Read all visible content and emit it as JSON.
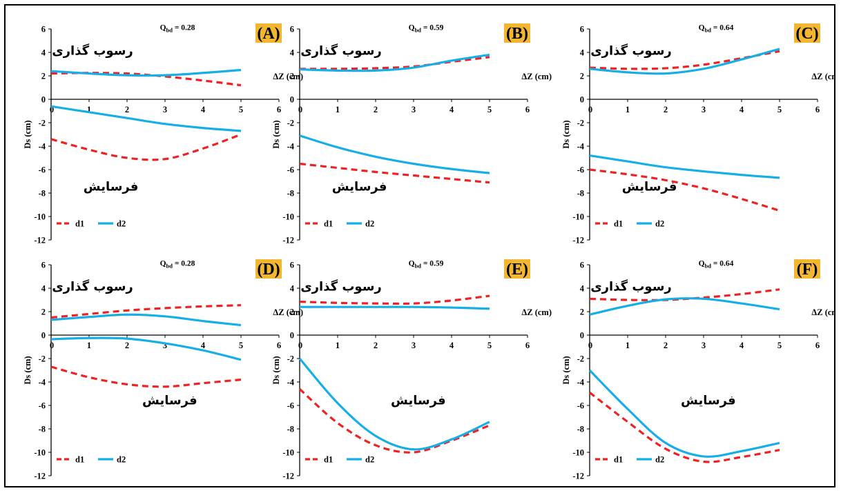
{
  "figure": {
    "x_axis_title": "ΔZ (cm)",
    "y_axis_title": "Ds (cm)",
    "deposition_label": "رسوب گذاری",
    "scour_label": "فرسایش",
    "legend": [
      "d1",
      "d2"
    ]
  },
  "colors": {
    "d1": "#ee2222",
    "d2": "#16aee6",
    "label_bg": "#f2b630"
  },
  "chart_data": [
    {
      "type": "line",
      "panel_label": "(A)",
      "q_text": "Qbd = 0.28",
      "xlim": [
        0,
        6
      ],
      "ylim": [
        -12,
        6
      ],
      "x_ticks": [
        0,
        1,
        2,
        3,
        4,
        5,
        6
      ],
      "y_ticks": [
        6,
        4,
        2,
        0,
        -2,
        -4,
        -6,
        -8,
        -10,
        -12
      ],
      "series": [
        {
          "name": "d1",
          "style": "dashed",
          "x": [
            0,
            1,
            2,
            3,
            4,
            5
          ],
          "deposition": [
            2.2,
            2.25,
            2.2,
            1.95,
            1.6,
            1.2
          ],
          "scour": [
            -3.4,
            -4.3,
            -5.0,
            -5.1,
            -4.2,
            -3.0
          ]
        },
        {
          "name": "d2",
          "style": "solid",
          "x": [
            0,
            1,
            2,
            3,
            4,
            5
          ],
          "deposition": [
            2.4,
            2.2,
            2.05,
            2.05,
            2.25,
            2.5
          ],
          "scour": [
            -0.6,
            -1.1,
            -1.6,
            -2.1,
            -2.45,
            -2.7
          ]
        }
      ]
    },
    {
      "type": "line",
      "panel_label": "(B)",
      "q_text": "Qbd = 0.59",
      "xlim": [
        0,
        6
      ],
      "ylim": [
        -12,
        6
      ],
      "x_ticks": [
        0,
        1,
        2,
        3,
        4,
        5,
        6
      ],
      "y_ticks": [
        6,
        4,
        2,
        0,
        -2,
        -4,
        -6,
        -8,
        -10,
        -12
      ],
      "series": [
        {
          "name": "d1",
          "style": "dashed",
          "x": [
            0,
            1,
            2,
            3,
            4,
            5
          ],
          "deposition": [
            2.6,
            2.6,
            2.65,
            2.8,
            3.2,
            3.6
          ],
          "scour": [
            -5.5,
            -5.85,
            -6.2,
            -6.5,
            -6.8,
            -7.1
          ]
        },
        {
          "name": "d2",
          "style": "solid",
          "x": [
            0,
            1,
            2,
            3,
            4,
            5
          ],
          "deposition": [
            2.55,
            2.45,
            2.45,
            2.7,
            3.3,
            3.8
          ],
          "scour": [
            -3.1,
            -4.1,
            -4.9,
            -5.5,
            -5.95,
            -6.3
          ]
        }
      ]
    },
    {
      "type": "line",
      "panel_label": "(C)",
      "q_text": "Qbd = 0.64",
      "xlim": [
        0,
        6
      ],
      "ylim": [
        -12,
        6
      ],
      "x_ticks": [
        0,
        1,
        2,
        3,
        4,
        5,
        6
      ],
      "y_ticks": [
        6,
        4,
        2,
        0,
        -2,
        -4,
        -6,
        -8,
        -10,
        -12
      ],
      "series": [
        {
          "name": "d1",
          "style": "dashed",
          "x": [
            0,
            1,
            2,
            3,
            4,
            5
          ],
          "deposition": [
            2.7,
            2.6,
            2.65,
            2.95,
            3.5,
            4.1
          ],
          "scour": [
            -6.0,
            -6.4,
            -6.9,
            -7.6,
            -8.5,
            -9.5
          ]
        },
        {
          "name": "d2",
          "style": "solid",
          "x": [
            0,
            1,
            2,
            3,
            4,
            5
          ],
          "deposition": [
            2.6,
            2.3,
            2.2,
            2.6,
            3.4,
            4.3
          ],
          "scour": [
            -4.8,
            -5.3,
            -5.8,
            -6.15,
            -6.45,
            -6.7
          ]
        }
      ]
    },
    {
      "type": "line",
      "panel_label": "(D)",
      "q_text": "Qbd = 0.28",
      "xlim": [
        0,
        6
      ],
      "ylim": [
        -12,
        6
      ],
      "x_ticks": [
        0,
        1,
        2,
        3,
        4,
        5,
        6
      ],
      "y_ticks": [
        6,
        4,
        2,
        0,
        -2,
        -4,
        -6,
        -8,
        -10,
        -12
      ],
      "series": [
        {
          "name": "d1",
          "style": "dashed",
          "x": [
            0,
            1,
            2,
            3,
            4,
            5
          ],
          "deposition": [
            1.5,
            1.8,
            2.1,
            2.3,
            2.45,
            2.55
          ],
          "scour": [
            -2.7,
            -3.6,
            -4.2,
            -4.4,
            -4.1,
            -3.8
          ]
        },
        {
          "name": "d2",
          "style": "solid",
          "x": [
            0,
            1,
            2,
            3,
            4,
            5
          ],
          "deposition": [
            1.3,
            1.55,
            1.75,
            1.6,
            1.2,
            0.85
          ],
          "scour": [
            -0.35,
            -0.25,
            -0.3,
            -0.7,
            -1.3,
            -2.1
          ]
        }
      ]
    },
    {
      "type": "line",
      "panel_label": "(E)",
      "q_text": "Qbd = 0.59",
      "xlim": [
        0,
        6
      ],
      "ylim": [
        -12,
        6
      ],
      "x_ticks": [
        0,
        1,
        2,
        3,
        4,
        5,
        6
      ],
      "y_ticks": [
        6,
        4,
        2,
        0,
        -2,
        -4,
        -6,
        -8,
        -10,
        -12
      ],
      "series": [
        {
          "name": "d1",
          "style": "dashed",
          "x": [
            0,
            1,
            2,
            3,
            4,
            5
          ],
          "deposition": [
            2.85,
            2.75,
            2.7,
            2.7,
            2.95,
            3.35
          ],
          "scour": [
            -4.6,
            -7.5,
            -9.4,
            -10.0,
            -9.0,
            -7.7
          ]
        },
        {
          "name": "d2",
          "style": "solid",
          "x": [
            0,
            1,
            2,
            3,
            4,
            5
          ],
          "deposition": [
            2.4,
            2.4,
            2.4,
            2.4,
            2.35,
            2.25
          ],
          "scour": [
            -2.0,
            -5.8,
            -8.6,
            -9.75,
            -8.9,
            -7.4
          ]
        }
      ]
    },
    {
      "type": "line",
      "panel_label": "(F)",
      "q_text": "Qbd = 0.64",
      "xlim": [
        0,
        6
      ],
      "ylim": [
        -12,
        6
      ],
      "x_ticks": [
        0,
        1,
        2,
        3,
        4,
        5,
        6
      ],
      "y_ticks": [
        6,
        4,
        2,
        0,
        -2,
        -4,
        -6,
        -8,
        -10,
        -12
      ],
      "series": [
        {
          "name": "d1",
          "style": "dashed",
          "x": [
            0,
            1,
            2,
            3,
            4,
            5
          ],
          "deposition": [
            3.1,
            3.0,
            3.0,
            3.2,
            3.5,
            3.9
          ],
          "scour": [
            -4.9,
            -7.4,
            -9.7,
            -10.8,
            -10.4,
            -9.8
          ]
        },
        {
          "name": "d2",
          "style": "solid",
          "x": [
            0,
            1,
            2,
            3,
            4,
            5
          ],
          "deposition": [
            1.75,
            2.5,
            3.05,
            3.1,
            2.7,
            2.2
          ],
          "scour": [
            -3.0,
            -6.3,
            -9.2,
            -10.35,
            -9.9,
            -9.2
          ]
        }
      ]
    }
  ]
}
